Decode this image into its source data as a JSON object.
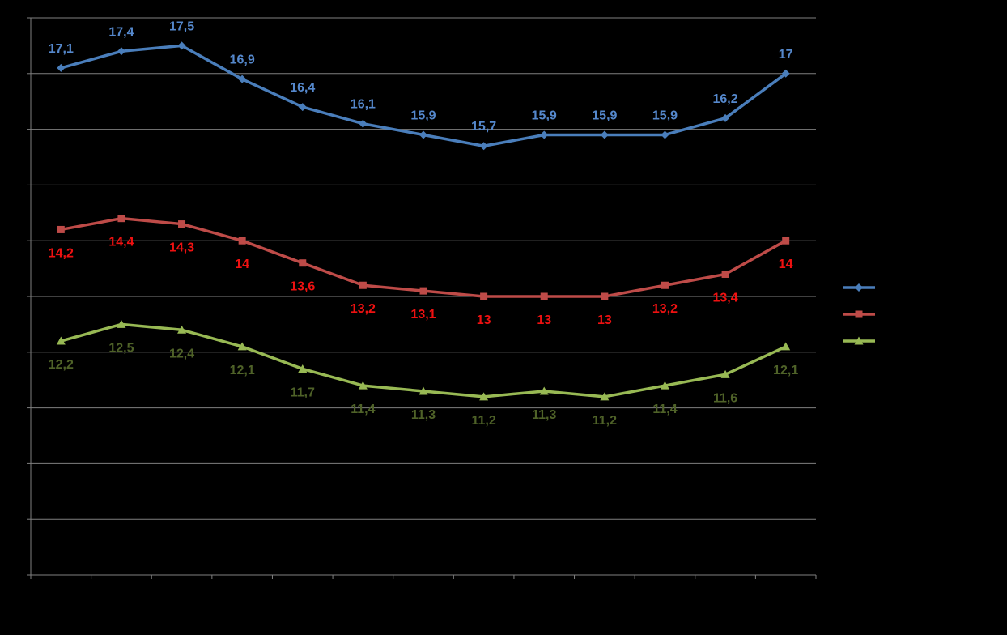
{
  "chart_data": {
    "type": "line",
    "title": "",
    "xlabel": "",
    "ylabel": "",
    "categories": [
      "",
      "",
      "",
      "",
      "",
      "",
      "",
      "",
      "",
      "",
      "",
      "",
      ""
    ],
    "ylim": [
      8,
      18
    ],
    "y_gridlines": [
      8,
      9,
      10,
      11,
      12,
      13,
      14,
      15,
      16,
      17,
      18
    ],
    "grid": true,
    "legend": "right",
    "background": "#000000",
    "gridline_color": "#7f7f7f",
    "series": [
      {
        "values": [
          17.1,
          17.4,
          17.5,
          16.9,
          16.4,
          16.1,
          15.9,
          15.7,
          15.9,
          15.9,
          15.9,
          16.2,
          17.0
        ],
        "labels": [
          "17,1",
          "17,4",
          "17,5",
          "16,9",
          "16,4",
          "16,1",
          "15,9",
          "15,7",
          "15,9",
          "15,9",
          "15,9",
          "16,2",
          "17"
        ],
        "label_position": "above",
        "marker": "diamond",
        "line_color": "#4a7ebb",
        "label_color": "#5588cc"
      },
      {
        "values": [
          14.2,
          14.4,
          14.3,
          14.0,
          13.6,
          13.2,
          13.1,
          13.0,
          13.0,
          13.0,
          13.2,
          13.4,
          14.0
        ],
        "labels": [
          "14,2",
          "14,4",
          "14,3",
          "14",
          "13,6",
          "13,2",
          "13,1",
          "13",
          "13",
          "13",
          "13,2",
          "13,4",
          "14"
        ],
        "label_position": "below",
        "marker": "square",
        "line_color": "#be4b48",
        "label_color": "#ee1111"
      },
      {
        "values": [
          12.2,
          12.5,
          12.4,
          12.1,
          11.7,
          11.4,
          11.3,
          11.2,
          11.3,
          11.2,
          11.4,
          11.6,
          12.1
        ],
        "labels": [
          "12,2",
          "12,5",
          "12,4",
          "12,1",
          "11,7",
          "11,4",
          "11,3",
          "11,2",
          "11,3",
          "11,2",
          "11,4",
          "11,6",
          "12,1"
        ],
        "label_position": "below",
        "marker": "triangle",
        "line_color": "#98b954",
        "label_color": "#4f6228"
      }
    ]
  }
}
